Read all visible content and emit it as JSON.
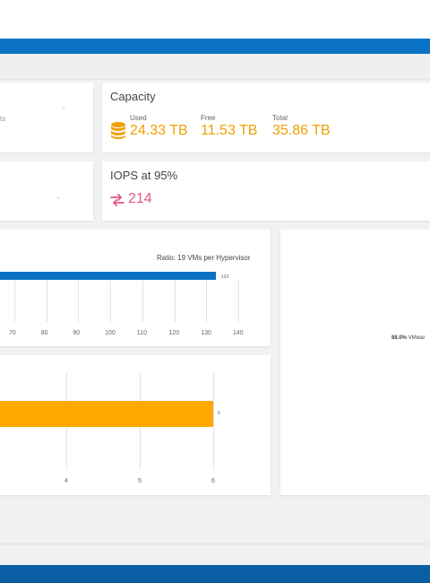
{
  "capacity": {
    "title": "Capacity",
    "used_label": "Used",
    "used_value": "24.33 TB",
    "free_label": "Free",
    "free_value": "11.53 TB",
    "total_label": "Total",
    "total_value": "35.86 TB"
  },
  "iops": {
    "title": "IOPS at 95%",
    "value": "214"
  },
  "left_card_fragment": "ts",
  "chart_data": [
    {
      "type": "bar",
      "ratio_text": "Ratio: 19 VMs per Hypervisor",
      "tick_labels": [
        "70",
        "80",
        "90",
        "100",
        "110",
        "120",
        "130",
        "140"
      ],
      "values": [
        133
      ],
      "bar_labels": [
        "133"
      ],
      "colors": [
        "#0a72c4"
      ]
    },
    {
      "type": "bar",
      "tick_labels": [
        "4",
        "5",
        "6"
      ],
      "values": [
        6
      ],
      "bar_labels": [
        "6"
      ],
      "colors": [
        "#ffa800"
      ]
    }
  ],
  "pie_label": {
    "percent": "88.0%",
    "name": "VMwar"
  },
  "colors": {
    "accent": "#0a72c4",
    "orange": "#ffa800",
    "pink": "#e25a85",
    "footer": "#0a5ea3"
  },
  "icons": {
    "capacity": "database-stack-icon",
    "iops": "swap-arrows-icon"
  }
}
